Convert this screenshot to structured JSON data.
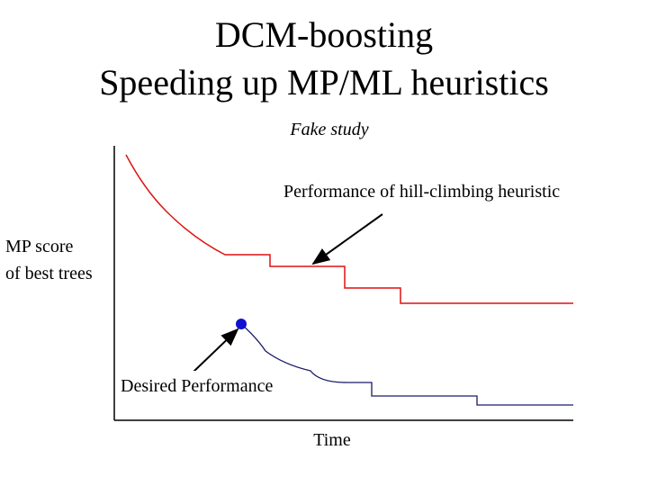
{
  "header": {
    "title_lines": [
      "DCM-boosting",
      "Speeding up MP/ML heuristics"
    ],
    "subtitle": "Fake study"
  },
  "labels": {
    "hill_climbing": "Performance of hill-climbing heuristic",
    "y_axis": [
      "MP score",
      "of best trees"
    ],
    "desired": "Desired Performance",
    "x_axis": "Time"
  }
}
